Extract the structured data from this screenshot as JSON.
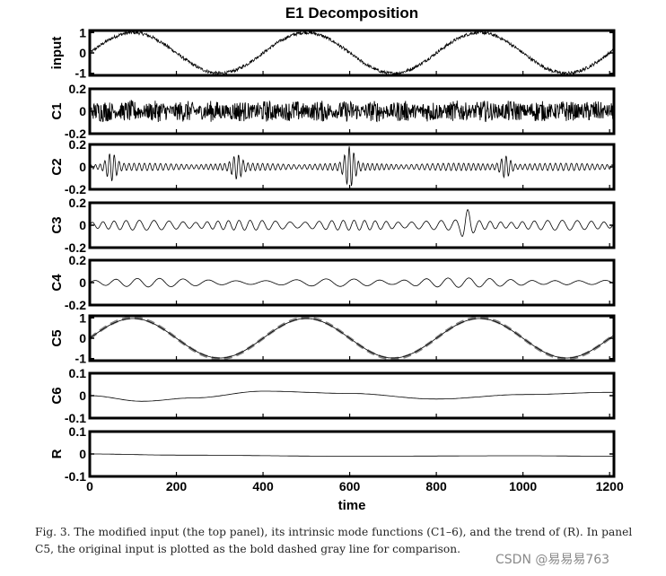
{
  "chart_data": {
    "type": "line",
    "title": "E1 Decomposition",
    "xlabel": "time",
    "xlim": [
      0,
      1210
    ],
    "x_ticks": [
      "0",
      "200",
      "400",
      "600",
      "800",
      "1000",
      "1200"
    ],
    "x_tick_values": [
      0,
      200,
      400,
      600,
      800,
      1000,
      1200
    ],
    "sine_period": 400,
    "panels": [
      {
        "name": "input",
        "ylabel": "input",
        "ylim": [
          -1.1,
          1.1
        ],
        "tick_labels": [
          "1",
          "0",
          "-1"
        ],
        "tick_values": [
          1,
          0,
          -1
        ],
        "description_values": {
          "amplitude": 1.0,
          "period": 400,
          "noise_amplitude": 0.08
        }
      },
      {
        "name": "C1",
        "ylabel": "C1",
        "ylim": [
          -0.2,
          0.2
        ],
        "tick_labels": [
          "0.2",
          "0",
          "-0.2"
        ],
        "tick_values": [
          0.2,
          0,
          -0.2
        ],
        "description_values": {
          "noise_amplitude": 0.08
        }
      },
      {
        "name": "C2",
        "ylabel": "C2",
        "ylim": [
          -0.2,
          0.2
        ],
        "tick_labels": [
          "0.2",
          "0",
          "-0.2"
        ],
        "tick_values": [
          0.2,
          0,
          -0.2
        ],
        "description_values": {
          "base_amplitude": 0.03,
          "bursts": [
            {
              "t": 50,
              "amp": 0.1
            },
            {
              "t": 340,
              "amp": 0.08
            },
            {
              "t": 600,
              "amp": 0.15
            },
            {
              "t": 960,
              "amp": 0.08
            }
          ]
        }
      },
      {
        "name": "C3",
        "ylabel": "C3",
        "ylim": [
          -0.2,
          0.2
        ],
        "tick_labels": [
          "0.2",
          "0",
          "-0.2"
        ],
        "tick_values": [
          0.2,
          0,
          -0.2
        ],
        "description_values": {
          "base_amplitude": 0.04,
          "bursts": [
            {
              "t": 870,
              "amp": 0.1
            }
          ]
        }
      },
      {
        "name": "C4",
        "ylabel": "C4",
        "ylim": [
          -0.2,
          0.2
        ],
        "tick_labels": [
          "0.2",
          "0",
          "-0.2"
        ],
        "tick_values": [
          0.2,
          0,
          -0.2
        ],
        "description_values": {
          "base_amplitude": 0.04
        }
      },
      {
        "name": "C5",
        "ylabel": "C5",
        "ylim": [
          -1.1,
          1.1
        ],
        "tick_labels": [
          "1",
          "0",
          "-1"
        ],
        "tick_values": [
          1,
          0,
          -1
        ],
        "description_values": {
          "amplitude": 0.97,
          "period": 400
        },
        "overlay": {
          "description": "original input",
          "style": "bold dashed gray",
          "amplitude": 1.0,
          "period": 400
        }
      },
      {
        "name": "C6",
        "ylabel": "C6",
        "ylim": [
          -0.1,
          0.1
        ],
        "tick_labels": [
          "0.1",
          "0",
          "-0.1"
        ],
        "tick_values": [
          0.1,
          0,
          -0.1
        ],
        "description_values": {
          "points": [
            [
              0,
              0.0
            ],
            [
              120,
              -0.025
            ],
            [
              240,
              -0.01
            ],
            [
              400,
              0.02
            ],
            [
              600,
              0.01
            ],
            [
              800,
              -0.015
            ],
            [
              1000,
              0.005
            ],
            [
              1210,
              0.015
            ]
          ]
        }
      },
      {
        "name": "R",
        "ylabel": "R",
        "ylim": [
          -0.1,
          0.1
        ],
        "tick_labels": [
          "0.1",
          "0",
          "-0.1"
        ],
        "tick_values": [
          0.1,
          0,
          -0.1
        ],
        "description_values": {
          "points": [
            [
              0,
              0.0
            ],
            [
              200,
              -0.005
            ],
            [
              600,
              -0.01
            ],
            [
              1000,
              -0.008
            ],
            [
              1210,
              -0.01
            ]
          ]
        }
      }
    ]
  },
  "caption": {
    "label": "Fig. 3.",
    "text": "The modified input (the top panel), its intrinsic mode functions (C1–6), and the trend of (R). In panel C5, the original input is plotted as the bold dashed gray line for comparison."
  },
  "watermark": "CSDN @易易易763",
  "colors": {
    "line": "#000000",
    "overlay": "#808080",
    "frame": "#000000"
  }
}
